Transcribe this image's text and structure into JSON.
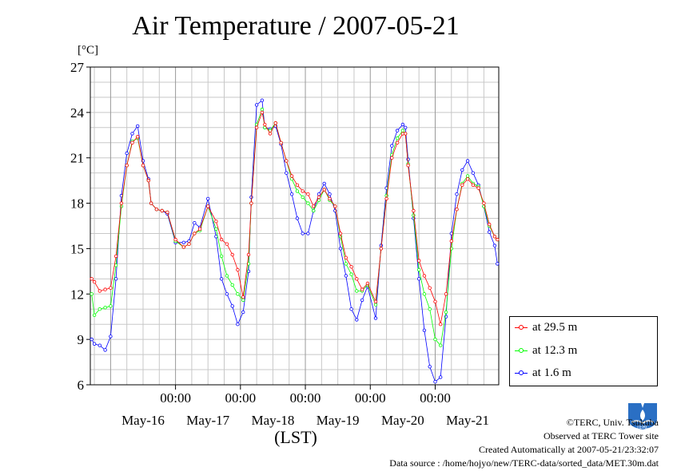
{
  "title": "Air Temperature / 2007-05-21",
  "unit_label": "[°C]",
  "x_axis_label": "(LST)",
  "y_ticks": [
    "6",
    "9",
    "12",
    "15",
    "18",
    "21",
    "24",
    "27"
  ],
  "time_ticks": [
    "00:00",
    "00:00",
    "00:00",
    "00:00",
    "00:00"
  ],
  "date_labels": [
    "May-16",
    "May-17",
    "May-18",
    "May-19",
    "May-20",
    "May-21"
  ],
  "legend": [
    {
      "label": "at 29.5 m",
      "color": "#ff0000"
    },
    {
      "label": "at 12.3 m",
      "color": "#00ff00"
    },
    {
      "label": "at 1.6 m",
      "color": "#0000ff"
    }
  ],
  "footer": {
    "copyright": "©TERC, Univ. Tsukuba",
    "observed": "Observed at TERC Tower site",
    "created": "Created Automatically at 2007-05-21/23:32:07",
    "source": "Data source : /home/hojyo/new/TERC-data/sorted_data/MET.30m.dat"
  },
  "logo_text": "TERC",
  "chart_data": {
    "type": "line",
    "title": "Air Temperature / 2007-05-21",
    "ylabel": "[°C]",
    "xlabel": "(LST)",
    "ylim": [
      6,
      27
    ],
    "xlim": [
      "2007-05-15 16:30",
      "2007-05-21 23:30"
    ],
    "grid": true,
    "legend_position": "right",
    "x": [
      "2007-05-15 17:00",
      "2007-05-15 18:00",
      "2007-05-15 20:00",
      "2007-05-15 22:00",
      "2007-05-16 00:00",
      "2007-05-16 02:00",
      "2007-05-16 04:00",
      "2007-05-16 06:00",
      "2007-05-16 08:00",
      "2007-05-16 10:00",
      "2007-05-16 12:00",
      "2007-05-16 14:00",
      "2007-05-16 15:00",
      "2007-05-16 17:00",
      "2007-05-16 19:00",
      "2007-05-16 21:00",
      "2007-05-17 00:00",
      "2007-05-17 03:00",
      "2007-05-17 05:00",
      "2007-05-17 07:00",
      "2007-05-17 09:00",
      "2007-05-17 12:00",
      "2007-05-17 15:00",
      "2007-05-17 17:00",
      "2007-05-17 19:00",
      "2007-05-17 21:00",
      "2007-05-17 23:00",
      "2007-05-18 01:00",
      "2007-05-18 03:00",
      "2007-05-18 04:00",
      "2007-05-18 06:00",
      "2007-05-18 08:00",
      "2007-05-18 09:00",
      "2007-05-18 11:00",
      "2007-05-18 13:00",
      "2007-05-18 15:00",
      "2007-05-18 17:00",
      "2007-05-18 19:00",
      "2007-05-18 21:00",
      "2007-05-18 23:00",
      "2007-05-19 01:00",
      "2007-05-19 03:00",
      "2007-05-19 05:00",
      "2007-05-19 07:00",
      "2007-05-19 09:00",
      "2007-05-19 11:00",
      "2007-05-19 13:00",
      "2007-05-19 15:00",
      "2007-05-19 17:00",
      "2007-05-19 19:00",
      "2007-05-19 21:00",
      "2007-05-19 23:00",
      "2007-05-20 02:00",
      "2007-05-20 04:00",
      "2007-05-20 06:00",
      "2007-05-20 08:00",
      "2007-05-20 10:00",
      "2007-05-20 12:00",
      "2007-05-20 13:00",
      "2007-05-20 14:00",
      "2007-05-20 16:00",
      "2007-05-20 18:00",
      "2007-05-20 20:00",
      "2007-05-20 22:00",
      "2007-05-21 00:00",
      "2007-05-21 02:00",
      "2007-05-21 04:00",
      "2007-05-21 06:00",
      "2007-05-21 08:00",
      "2007-05-21 10:00",
      "2007-05-21 12:00",
      "2007-05-21 14:00",
      "2007-05-21 16:00",
      "2007-05-21 18:00",
      "2007-05-21 20:00",
      "2007-05-21 22:00",
      "2007-05-21 23:00"
    ],
    "series": [
      {
        "name": "at 29.5 m",
        "color": "#ff0000",
        "values": [
          13.0,
          12.8,
          12.2,
          12.3,
          12.4,
          14.5,
          18.0,
          20.5,
          22.0,
          22.4,
          20.5,
          19.5,
          18.0,
          17.6,
          17.5,
          17.4,
          15.6,
          15.1,
          15.3,
          16.0,
          16.3,
          17.8,
          16.8,
          15.6,
          15.3,
          14.6,
          13.6,
          11.8,
          14.6,
          18.0,
          23.0,
          24.0,
          23.2,
          22.6,
          23.3,
          22.0,
          20.8,
          19.8,
          19.2,
          18.8,
          18.6,
          17.8,
          18.4,
          18.9,
          18.3,
          17.8,
          16.0,
          14.4,
          13.8,
          13.0,
          12.3,
          12.7,
          11.5,
          15.0,
          18.3,
          21.0,
          22.0,
          22.6,
          22.6,
          20.5,
          17.5,
          14.2,
          13.2,
          12.4,
          11.5,
          10.0,
          12.0,
          15.5,
          17.6,
          19.2,
          19.6,
          19.2,
          19.0,
          18.0,
          16.6,
          15.8,
          15.6
        ]
      },
      {
        "name": "at 12.3 m",
        "color": "#00ff00",
        "values": [
          12.0,
          10.6,
          11.0,
          11.1,
          11.2,
          13.9,
          17.8,
          20.5,
          22.1,
          22.3,
          20.5,
          19.5,
          18.0,
          17.6,
          17.5,
          17.4,
          15.5,
          15.1,
          15.3,
          16.0,
          16.2,
          17.8,
          16.3,
          14.5,
          13.2,
          12.6,
          12.0,
          11.6,
          14.0,
          18.0,
          23.2,
          24.2,
          23.0,
          22.8,
          23.3,
          22.0,
          20.8,
          19.6,
          18.8,
          18.4,
          18.0,
          17.5,
          18.2,
          18.9,
          18.2,
          17.8,
          15.8,
          14.0,
          13.3,
          12.2,
          12.2,
          12.6,
          11.3,
          15.0,
          18.5,
          21.2,
          22.3,
          22.8,
          22.6,
          20.6,
          17.2,
          13.6,
          12.0,
          11.0,
          9.0,
          8.6,
          10.8,
          15.0,
          17.6,
          19.3,
          19.8,
          19.3,
          19.1,
          17.8,
          16.5,
          15.8,
          15.6
        ]
      },
      {
        "name": "at 1.6 m",
        "color": "#0000ff",
        "values": [
          9.0,
          8.7,
          8.6,
          8.3,
          9.2,
          13.0,
          18.5,
          21.3,
          22.6,
          23.1,
          20.8,
          19.6,
          18.0,
          17.6,
          17.5,
          17.3,
          15.4,
          15.4,
          15.5,
          16.7,
          16.4,
          18.3,
          15.8,
          13.0,
          12.0,
          11.2,
          10.0,
          10.8,
          13.5,
          18.4,
          24.5,
          24.8,
          23.0,
          22.9,
          23.1,
          21.9,
          20.0,
          18.6,
          17.0,
          16.0,
          16.0,
          17.5,
          18.6,
          19.3,
          18.6,
          17.5,
          15.0,
          13.2,
          11.0,
          10.3,
          11.6,
          12.5,
          10.4,
          15.2,
          19.0,
          21.8,
          22.8,
          23.2,
          23.0,
          20.9,
          17.0,
          13.0,
          9.6,
          7.2,
          6.2,
          6.5,
          10.5,
          16.0,
          18.6,
          20.2,
          20.8,
          20.0,
          19.2,
          17.8,
          16.1,
          15.2,
          14.0
        ]
      }
    ]
  }
}
